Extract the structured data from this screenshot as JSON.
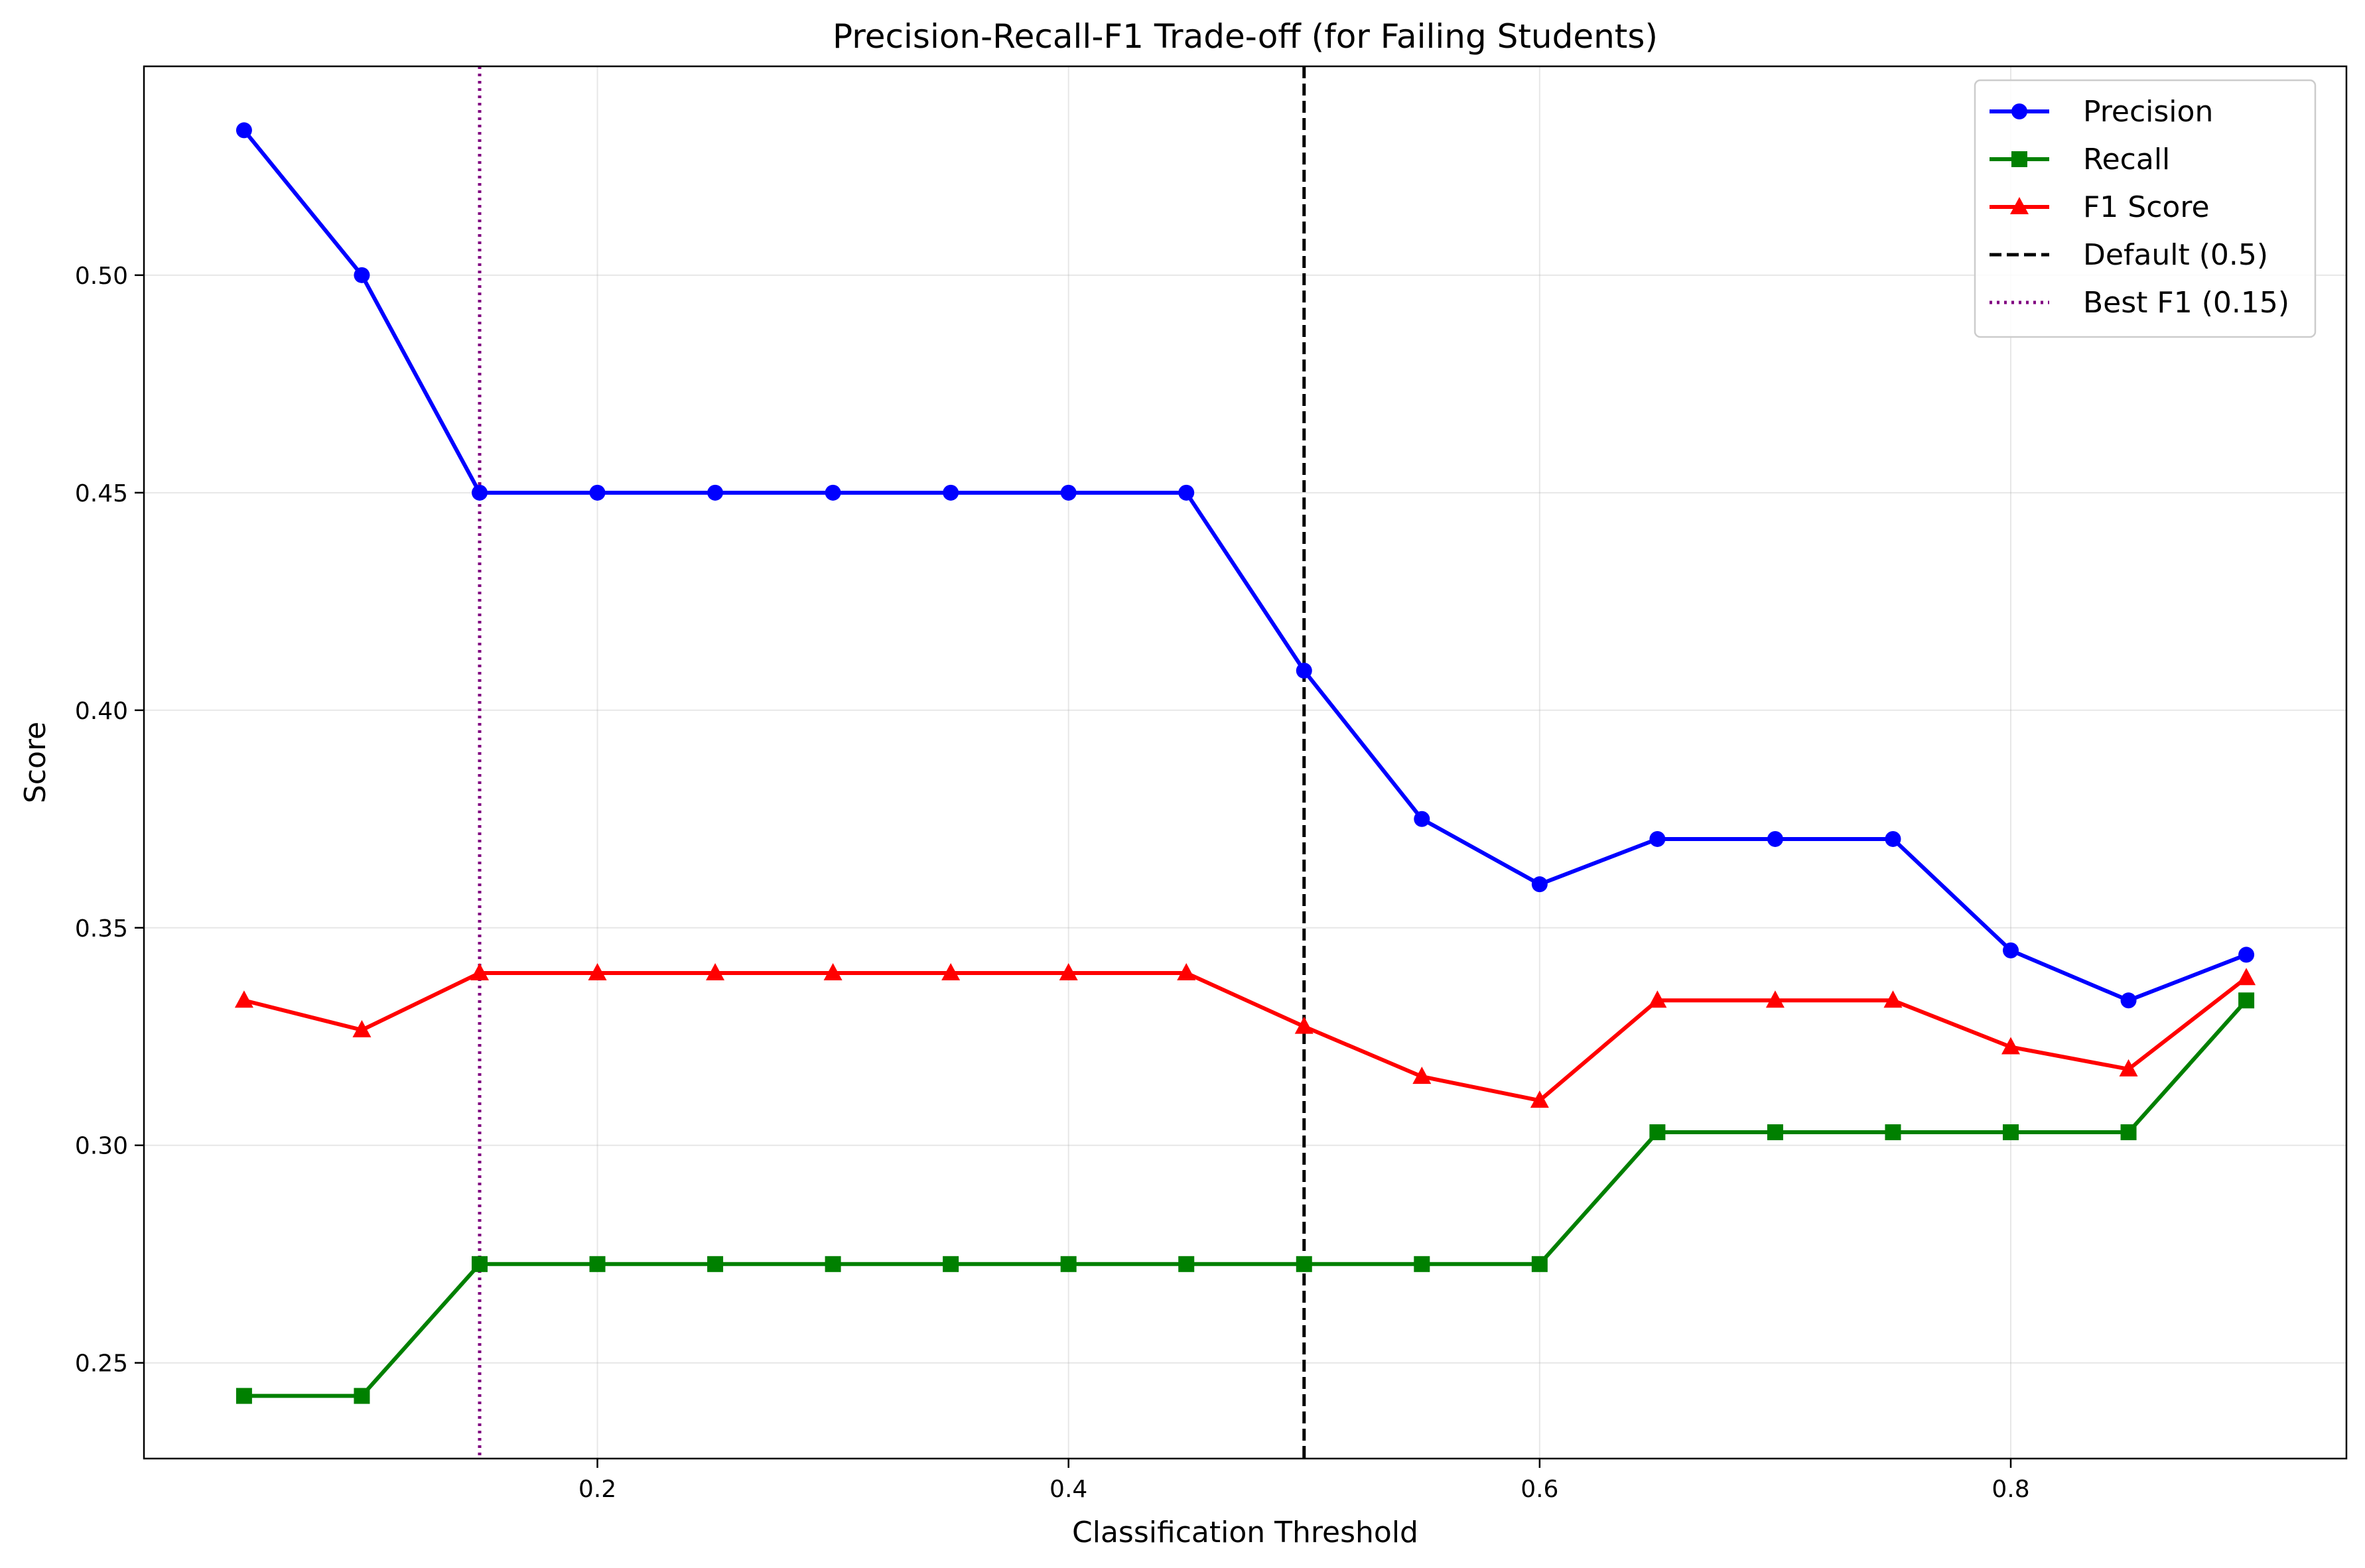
{
  "chart_data": {
    "type": "line",
    "title": "Precision-Recall-F1 Trade-off (for Failing Students)",
    "xlabel": "Classification Threshold",
    "ylabel": "Score",
    "xlim": [
      0.0075,
      0.9425
    ],
    "ylim": [
      0.228,
      0.548
    ],
    "xticks": [
      0.2,
      0.4,
      0.6,
      0.8
    ],
    "xtick_labels": [
      "0.2",
      "0.4",
      "0.6",
      "0.8"
    ],
    "yticks": [
      0.25,
      0.3,
      0.35,
      0.4,
      0.45,
      0.5
    ],
    "ytick_labels": [
      "0.25",
      "0.30",
      "0.35",
      "0.40",
      "0.45",
      "0.50"
    ],
    "grid": true,
    "legend_position": "top-right",
    "x": [
      0.05,
      0.1,
      0.15,
      0.2,
      0.25,
      0.3,
      0.35,
      0.4,
      0.45,
      0.5,
      0.55,
      0.6,
      0.65,
      0.7,
      0.75,
      0.8,
      0.85,
      0.9
    ],
    "series": [
      {
        "name": "Precision",
        "color": "#0000ff",
        "marker": "circle",
        "values": [
          0.5333,
          0.5,
          0.45,
          0.45,
          0.45,
          0.45,
          0.45,
          0.45,
          0.45,
          0.4091,
          0.375,
          0.36,
          0.3704,
          0.3704,
          0.3704,
          0.3448,
          0.3333,
          0.3438
        ]
      },
      {
        "name": "Recall",
        "color": "#008000",
        "marker": "square",
        "values": [
          0.2424,
          0.2424,
          0.2727,
          0.2727,
          0.2727,
          0.2727,
          0.2727,
          0.2727,
          0.2727,
          0.2727,
          0.2727,
          0.2727,
          0.303,
          0.303,
          0.303,
          0.303,
          0.303,
          0.3333
        ]
      },
      {
        "name": "F1 Score",
        "color": "#ff0000",
        "marker": "triangle",
        "values": [
          0.3333,
          0.3265,
          0.3396,
          0.3396,
          0.3396,
          0.3396,
          0.3396,
          0.3396,
          0.3396,
          0.3273,
          0.3158,
          0.3103,
          0.3333,
          0.3333,
          0.3333,
          0.3226,
          0.3175,
          0.3385
        ]
      }
    ],
    "vlines": [
      {
        "name": "Default (0.5)",
        "x": 0.5,
        "color": "#000000",
        "style": "dashed"
      },
      {
        "name": "Best F1 (0.15)",
        "x": 0.15,
        "color": "#800080",
        "style": "dotted"
      }
    ]
  }
}
